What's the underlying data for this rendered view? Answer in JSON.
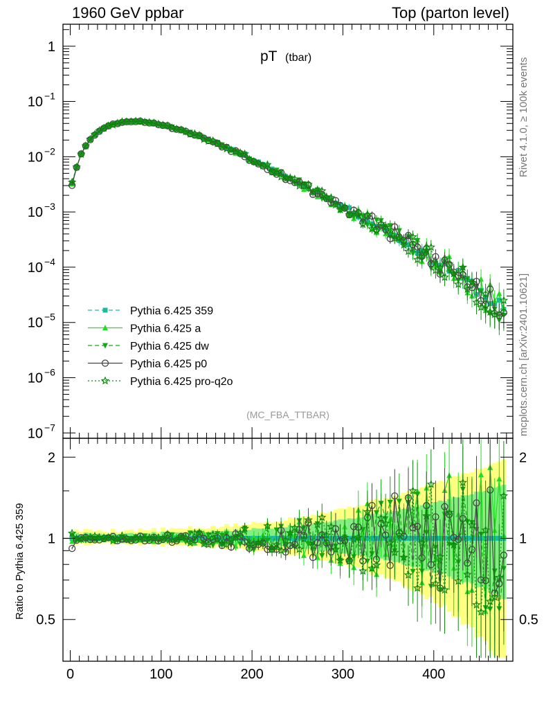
{
  "header": {
    "left": "1960 GeV ppbar",
    "right": "Top (parton level)"
  },
  "side": {
    "rivet": "Rivet 4.1.0, ≥ 100k events",
    "mcplots": "mcplots.cern.ch [arXiv:2401.10621]"
  },
  "ratio_ylabel": "Ratio to Pythia 6.425 359",
  "chart_data": {
    "type": "line",
    "title": "pT",
    "title_sub": "(tbar)",
    "watermark": "(MC_FBA_TTBAR)",
    "xlabel": "",
    "xlim": [
      -8,
      487
    ],
    "xticks": [
      "0",
      "100",
      "200",
      "300",
      "400"
    ],
    "main": {
      "yscale": "log",
      "ylim": [
        8e-08,
        2.5
      ],
      "ytick_labels": [
        "1",
        "10",
        "10",
        "10",
        "10",
        "10",
        "10",
        "10"
      ],
      "ytick_exps": [
        "",
        "−1",
        "−2",
        "−3",
        "−4",
        "−5",
        "−6",
        "−7"
      ]
    },
    "ratio": {
      "ylim": [
        0.35,
        2.35
      ],
      "ytick_labels": [
        "0.5",
        "1",
        "2"
      ],
      "band_colors": [
        "#ffff80",
        "#80ee80"
      ]
    },
    "reference_curve": {
      "x": [
        2,
        10,
        20,
        30,
        40,
        50,
        60,
        70,
        80,
        90,
        100,
        120,
        140,
        160,
        180,
        200,
        220,
        240,
        260,
        280,
        300,
        320,
        340,
        360,
        380,
        400,
        420,
        440,
        460,
        480
      ],
      "y": [
        0.0033,
        0.0098,
        0.019,
        0.028,
        0.035,
        0.04,
        0.043,
        0.044,
        0.043,
        0.041,
        0.038,
        0.031,
        0.024,
        0.018,
        0.0128,
        0.0089,
        0.0061,
        0.0041,
        0.0028,
        0.0019,
        0.00125,
        0.00082,
        0.00054,
        0.00035,
        0.00022,
        0.000135,
        8.5e-05,
        5e-05,
        2.8e-05,
        1.6e-05
      ]
    },
    "series": [
      {
        "name": "Pythia 6.425 359",
        "color": "#1abc9c",
        "marker": "square",
        "dash": "6,4",
        "seed": 11
      },
      {
        "name": "Pythia 6.425 a",
        "color": "#22dd22",
        "marker": "triangle-up",
        "dash": "",
        "seed": 23
      },
      {
        "name": "Pythia 6.425 dw",
        "color": "#11aa11",
        "marker": "triangle-down",
        "dash": "6,4",
        "seed": 37
      },
      {
        "name": "Pythia 6.425 p0",
        "color": "#444444",
        "marker": "circle-open",
        "dash": "",
        "seed": 53
      },
      {
        "name": "Pythia 6.425 pro-q2o",
        "color": "#118811",
        "marker": "star-open",
        "dash": "2,3",
        "seed": 71
      }
    ]
  }
}
